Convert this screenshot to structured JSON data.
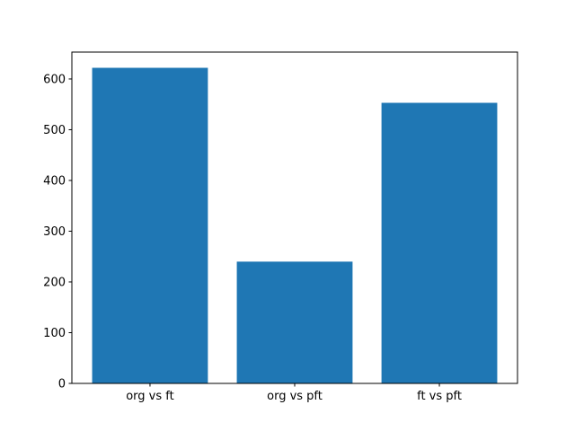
{
  "figure": {
    "background": "#ffffff",
    "spine_color": "#000000",
    "tick_color": "#000000",
    "tick_label_color": "#000000"
  },
  "chart_data": {
    "type": "bar",
    "title": "",
    "xlabel": "",
    "ylabel": "",
    "categories": [
      "org vs ft",
      "org vs pft",
      "ft vs pft"
    ],
    "values": [
      622,
      240,
      553
    ],
    "bar_color": "#1f77b4",
    "bar_width_fraction": 0.8,
    "ylim": [
      0,
      653
    ],
    "yticks": [
      0,
      100,
      200,
      300,
      400,
      500,
      600
    ],
    "grid": false,
    "legend": null
  }
}
